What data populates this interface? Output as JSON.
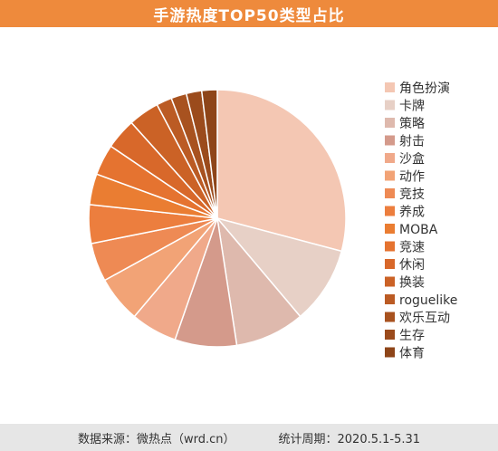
{
  "header": {
    "title": "手游热度TOP50类型占比"
  },
  "footer": {
    "source": "数据来源：微热点（wrd.cn）",
    "period": "统计周期：2020.5.1-5.31"
  },
  "colors": {
    "banner": "#ee8a3c",
    "footer_bg": "#e6e6e6"
  },
  "chart_data": {
    "type": "pie",
    "title": "手游热度TOP50类型占比",
    "legend_position": "right",
    "start_angle_deg": 0,
    "direction": "clockwise",
    "categories": [
      "角色扮演",
      "卡牌",
      "策略",
      "射击",
      "沙盒",
      "动作",
      "竞技",
      "养成",
      "MOBA",
      "竞速",
      "休闲",
      "换装",
      "roguelike",
      "欢乐互动",
      "生存",
      "体育"
    ],
    "values": [
      15,
      5,
      4.5,
      4,
      3,
      3,
      2.5,
      2.5,
      2,
      2,
      2,
      2,
      1,
      1,
      1,
      1
    ],
    "colors": [
      "#f4c7b3",
      "#e7d0c6",
      "#deb9ad",
      "#d49a8b",
      "#f0a98a",
      "#f2a376",
      "#ee8a54",
      "#ec7e3e",
      "#ea7d32",
      "#e57330",
      "#d8682a",
      "#cb6226",
      "#bb5b24",
      "#a8521f",
      "#9b4b1c",
      "#8e4519"
    ]
  }
}
